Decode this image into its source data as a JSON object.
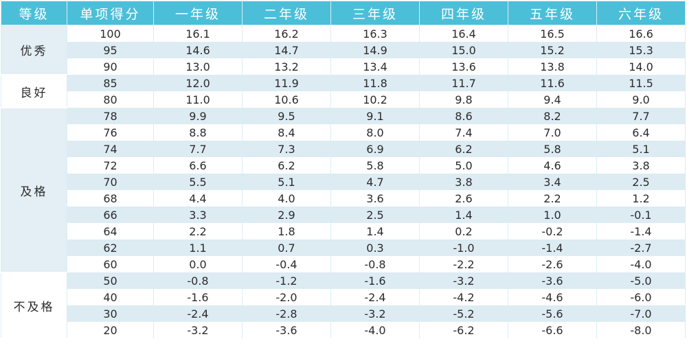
{
  "table": {
    "headers": [
      "等级",
      "单项得分",
      "一年级",
      "二年级",
      "三年级",
      "四年级",
      "五年级",
      "六年级"
    ],
    "groups": [
      {
        "level": "优秀",
        "rows": [
          [
            "100",
            "16.1",
            "16.2",
            "16.3",
            "16.4",
            "16.5",
            "16.6"
          ],
          [
            "95",
            "14.6",
            "14.7",
            "14.9",
            "15.0",
            "15.2",
            "15.3"
          ],
          [
            "90",
            "13.0",
            "13.2",
            "13.4",
            "13.6",
            "13.8",
            "14.0"
          ]
        ]
      },
      {
        "level": "良好",
        "rows": [
          [
            "85",
            "12.0",
            "11.9",
            "11.8",
            "11.7",
            "11.6",
            "11.5"
          ],
          [
            "80",
            "11.0",
            "10.6",
            "10.2",
            "9.8",
            "9.4",
            "9.0"
          ]
        ]
      },
      {
        "level": "及格",
        "rows": [
          [
            "78",
            "9.9",
            "9.5",
            "9.1",
            "8.6",
            "8.2",
            "7.7"
          ],
          [
            "76",
            "8.8",
            "8.4",
            "8.0",
            "7.4",
            "7.0",
            "6.4"
          ],
          [
            "74",
            "7.7",
            "7.3",
            "6.9",
            "6.2",
            "5.8",
            "5.1"
          ],
          [
            "72",
            "6.6",
            "6.2",
            "5.8",
            "5.0",
            "4.6",
            "3.8"
          ],
          [
            "70",
            "5.5",
            "5.1",
            "4.7",
            "3.8",
            "3.4",
            "2.5"
          ],
          [
            "68",
            "4.4",
            "4.0",
            "3.6",
            "2.6",
            "2.2",
            "1.2"
          ],
          [
            "66",
            "3.3",
            "2.9",
            "2.5",
            "1.4",
            "1.0",
            "-0.1"
          ],
          [
            "64",
            "2.2",
            "1.8",
            "1.4",
            "0.2",
            "-0.2",
            "-1.4"
          ],
          [
            "62",
            "1.1",
            "0.7",
            "0.3",
            "-1.0",
            "-1.4",
            "-2.7"
          ],
          [
            "60",
            "0.0",
            "-0.4",
            "-0.8",
            "-2.2",
            "-2.6",
            "-4.0"
          ]
        ]
      },
      {
        "level": "不及格",
        "rows": [
          [
            "50",
            "-0.8",
            "-1.2",
            "-1.6",
            "-3.2",
            "-3.6",
            "-5.0"
          ],
          [
            "40",
            "-1.6",
            "-2.0",
            "-2.4",
            "-4.2",
            "-4.6",
            "-6.0"
          ],
          [
            "30",
            "-2.4",
            "-2.8",
            "-3.2",
            "-5.2",
            "-5.6",
            "-7.0"
          ],
          [
            "20",
            "-3.2",
            "-3.6",
            "-4.0",
            "-6.2",
            "-6.6",
            "-8.0"
          ]
        ]
      }
    ]
  },
  "colors": {
    "header_bg": "#4bbfd8",
    "header_text": "#ffffff",
    "stripe": "#ddebf3",
    "level_bg": "#e3eef5"
  }
}
